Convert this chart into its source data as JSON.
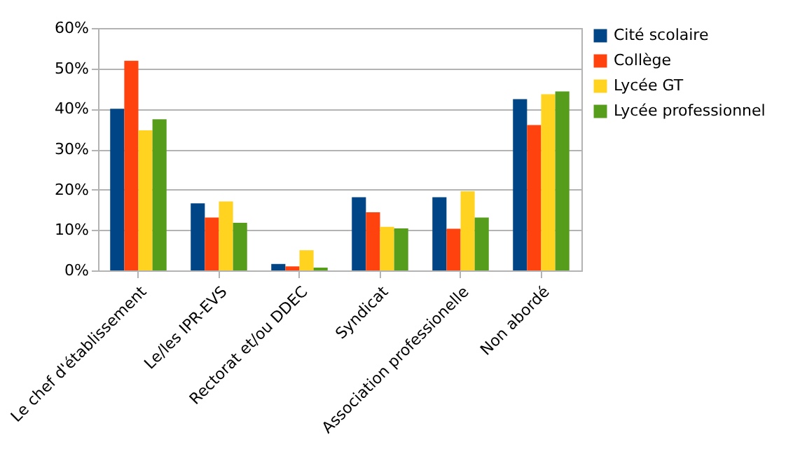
{
  "chart_data": {
    "type": "bar",
    "categories": [
      "Le chef d'établissement",
      "Le/les IPR-EVS",
      "Rectorat et/ou DDEC",
      "Syndicat",
      "Association professionelle",
      "Non abordé"
    ],
    "series": [
      {
        "name": "Cité scolaire",
        "color": "#004586",
        "values": [
          40.0,
          16.6,
          1.6,
          18.1,
          18.1,
          42.4
        ]
      },
      {
        "name": "Collège",
        "color": "#ff420e",
        "values": [
          51.9,
          13.1,
          1.0,
          14.4,
          10.3,
          36.0
        ]
      },
      {
        "name": "Lycée GT",
        "color": "#ffd320",
        "values": [
          34.7,
          17.1,
          5.0,
          10.8,
          19.6,
          43.6
        ]
      },
      {
        "name": "Lycée professionnel",
        "color": "#579d1c",
        "values": [
          37.4,
          11.8,
          0.7,
          10.4,
          13.1,
          44.3
        ]
      }
    ],
    "ylim": [
      0,
      60
    ],
    "yticks": [
      {
        "value": 0,
        "label": "0%"
      },
      {
        "value": 10,
        "label": "10%"
      },
      {
        "value": 20,
        "label": "20%"
      },
      {
        "value": 30,
        "label": "30%"
      },
      {
        "value": 40,
        "label": "40%"
      },
      {
        "value": 50,
        "label": "50%"
      },
      {
        "value": 60,
        "label": "60%"
      }
    ],
    "grid": "y",
    "legend": "right"
  }
}
